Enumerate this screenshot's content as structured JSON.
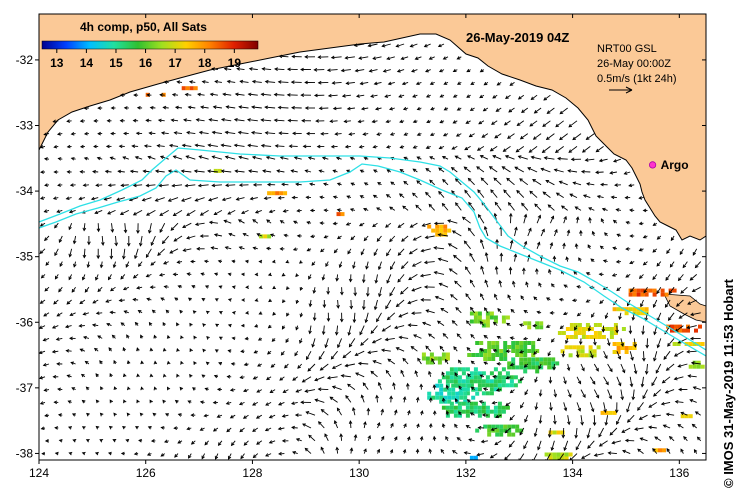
{
  "map": {
    "composite_label": "4h comp, p50, All Sats",
    "date_title": "26-May-2019 04Z",
    "product": {
      "line1": "NRT00 GSL",
      "line2": "26-May 00:00Z",
      "line3": "0.5m/s (1kt 24h)"
    },
    "argo_label": "Argo",
    "credit": "© IMOS 31-May-2019 11:53 Hobart",
    "colors": {
      "land": "#fbc997",
      "background": "#ffffff",
      "isobath": "#2ee0e6",
      "argo": "#ff33cc",
      "arrow": "#000000"
    }
  },
  "colorbar": {
    "min": 12.5,
    "max": 19.8,
    "ticks": [
      "13",
      "14",
      "15",
      "16",
      "17",
      "18",
      "19"
    ],
    "tick_values": [
      13,
      14,
      15,
      16,
      17,
      18,
      19
    ],
    "colormap": [
      "#00008f",
      "#0040ff",
      "#00bfff",
      "#20e0a0",
      "#30c030",
      "#a0e020",
      "#ffd000",
      "#ff8000",
      "#e02000",
      "#800000"
    ]
  },
  "axes": {
    "x_ticks": [
      "124",
      "126",
      "128",
      "130",
      "132",
      "134",
      "136"
    ],
    "x_values": [
      124,
      126,
      128,
      130,
      132,
      134,
      136
    ],
    "y_ticks": [
      "-32",
      "-33",
      "-34",
      "-35",
      "-36",
      "-37",
      "-38"
    ],
    "y_values": [
      -32,
      -33,
      -34,
      -35,
      -36,
      -37,
      -38
    ],
    "lon_range": [
      124,
      136.5
    ],
    "lat_range": [
      -38.1,
      -31.3
    ]
  },
  "argo": {
    "lon": 135.5,
    "lat": -33.6
  },
  "sst_patches": [
    {
      "lon": 126.1,
      "lat": -32.5,
      "dlon": 0.5,
      "dlat": 0.12,
      "value": 18.0
    },
    {
      "lon": 126.75,
      "lat": -32.4,
      "dlon": 0.3,
      "dlat": 0.12,
      "value": 18.4
    },
    {
      "lon": 127.3,
      "lat": -33.65,
      "dlon": 0.2,
      "dlat": 0.1,
      "value": 17.2
    },
    {
      "lon": 128.4,
      "lat": -34.0,
      "dlon": 0.4,
      "dlat": 0.12,
      "value": 17.9
    },
    {
      "lon": 128.2,
      "lat": -34.65,
      "dlon": 0.3,
      "dlat": 0.1,
      "value": 16.8
    },
    {
      "lon": 129.6,
      "lat": -34.3,
      "dlon": 0.2,
      "dlat": 0.08,
      "value": 18.3
    },
    {
      "lon": 131.5,
      "lat": -34.55,
      "dlon": 0.6,
      "dlat": 0.2,
      "value": 17.8
    },
    {
      "lon": 135.4,
      "lat": -35.5,
      "dlon": 1.0,
      "dlat": 0.15,
      "value": 18.5
    },
    {
      "lon": 135.0,
      "lat": -35.8,
      "dlon": 0.8,
      "dlat": 0.18,
      "value": 17.3
    },
    {
      "lon": 133.3,
      "lat": -36.0,
      "dlon": 0.6,
      "dlat": 0.15,
      "value": 16.4
    },
    {
      "lon": 134.3,
      "lat": -36.1,
      "dlon": 1.3,
      "dlat": 0.3,
      "value": 17.0
    },
    {
      "lon": 136.0,
      "lat": -36.05,
      "dlon": 0.8,
      "dlat": 0.15,
      "value": 18.6
    },
    {
      "lon": 136.1,
      "lat": -36.3,
      "dlon": 0.6,
      "dlat": 0.12,
      "value": 17.0
    },
    {
      "lon": 134.1,
      "lat": -36.4,
      "dlon": 0.8,
      "dlat": 0.22,
      "value": 16.9
    },
    {
      "lon": 134.9,
      "lat": -36.35,
      "dlon": 0.6,
      "dlat": 0.22,
      "value": 17.6
    },
    {
      "lon": 132.7,
      "lat": -36.4,
      "dlon": 1.5,
      "dlat": 0.35,
      "value": 16.0
    },
    {
      "lon": 133.2,
      "lat": -36.6,
      "dlon": 1.0,
      "dlat": 0.25,
      "value": 15.6
    },
    {
      "lon": 132.2,
      "lat": -36.85,
      "dlon": 1.6,
      "dlat": 0.45,
      "value": 15.2
    },
    {
      "lon": 131.7,
      "lat": -37.05,
      "dlon": 1.0,
      "dlat": 0.35,
      "value": 14.9
    },
    {
      "lon": 132.1,
      "lat": -37.3,
      "dlon": 1.4,
      "dlat": 0.3,
      "value": 15.4
    },
    {
      "lon": 131.4,
      "lat": -36.5,
      "dlon": 0.6,
      "dlat": 0.2,
      "value": 16.3
    },
    {
      "lon": 132.4,
      "lat": -35.9,
      "dlon": 0.8,
      "dlat": 0.25,
      "value": 16.2
    },
    {
      "lon": 132.6,
      "lat": -37.6,
      "dlon": 1.0,
      "dlat": 0.2,
      "value": 15.8
    },
    {
      "lon": 133.6,
      "lat": -37.65,
      "dlon": 0.4,
      "dlat": 0.12,
      "value": 17.0
    },
    {
      "lon": 134.6,
      "lat": -37.35,
      "dlon": 0.3,
      "dlat": 0.12,
      "value": 17.4
    },
    {
      "lon": 136.1,
      "lat": -37.4,
      "dlon": 0.3,
      "dlat": 0.12,
      "value": 16.9
    },
    {
      "lon": 133.7,
      "lat": -38.0,
      "dlon": 0.6,
      "dlat": 0.15,
      "value": 16.8
    },
    {
      "lon": 132.1,
      "lat": -38.05,
      "dlon": 0.2,
      "dlat": 0.15,
      "value": 14.2
    },
    {
      "lon": 135.6,
      "lat": -37.9,
      "dlon": 0.3,
      "dlat": 0.08,
      "value": 17.9
    },
    {
      "lon": 136.3,
      "lat": -36.6,
      "dlon": 0.4,
      "dlat": 0.15,
      "value": 16.5
    }
  ]
}
